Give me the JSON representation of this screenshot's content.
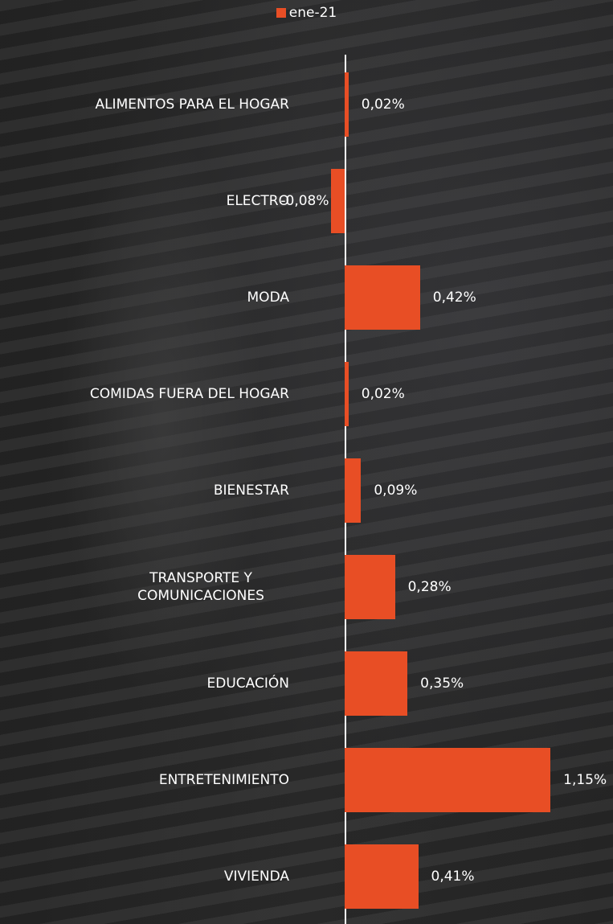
{
  "chart_data": {
    "type": "bar",
    "orientation": "horizontal",
    "legend_position": "top",
    "categories": [
      "ALIMENTOS PARA EL HOGAR",
      "ELECTRO",
      "MODA",
      "COMIDAS FUERA DEL HOGAR",
      "BIENESTAR",
      "TRANSPORTE Y COMUNICACIONES",
      "EDUCACIÓN",
      "ENTRETENIMIENTO",
      "VIVIENDA"
    ],
    "series": [
      {
        "name": "ene-21",
        "color": "#e84e25",
        "values": [
          0.02,
          -0.08,
          0.42,
          0.02,
          0.09,
          0.28,
          0.35,
          1.15,
          0.41
        ],
        "value_labels": [
          "0,02%",
          "-0,08%",
          "0,42%",
          "0,02%",
          "0,09%",
          "0,28%",
          "0,35%",
          "1,15%",
          "0,41%"
        ]
      }
    ],
    "xlim": [
      -1.93,
      1.5
    ]
  }
}
